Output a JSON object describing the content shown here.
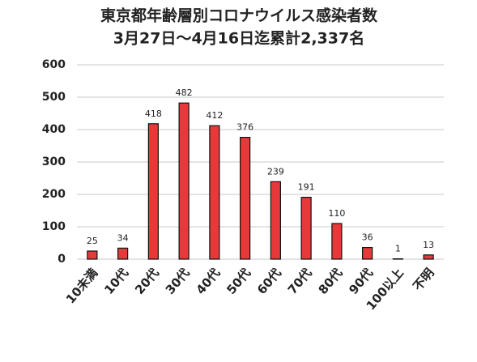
{
  "chart_data": {
    "type": "bar",
    "title": "東京都年齢層別コロナウイルス感染者数",
    "subtitle": "3月27日～4月16日迄累計2,337名",
    "categories": [
      "10未満",
      "10代",
      "20代",
      "30代",
      "40代",
      "50代",
      "60代",
      "70代",
      "80代",
      "90代",
      "100以上",
      "不明"
    ],
    "values": [
      25,
      34,
      418,
      482,
      412,
      376,
      239,
      191,
      110,
      36,
      1,
      13
    ],
    "color": "#e8393a",
    "ylim": [
      0,
      600
    ],
    "yticks": [
      0,
      100,
      200,
      300,
      400,
      500,
      600
    ],
    "grid": true
  }
}
